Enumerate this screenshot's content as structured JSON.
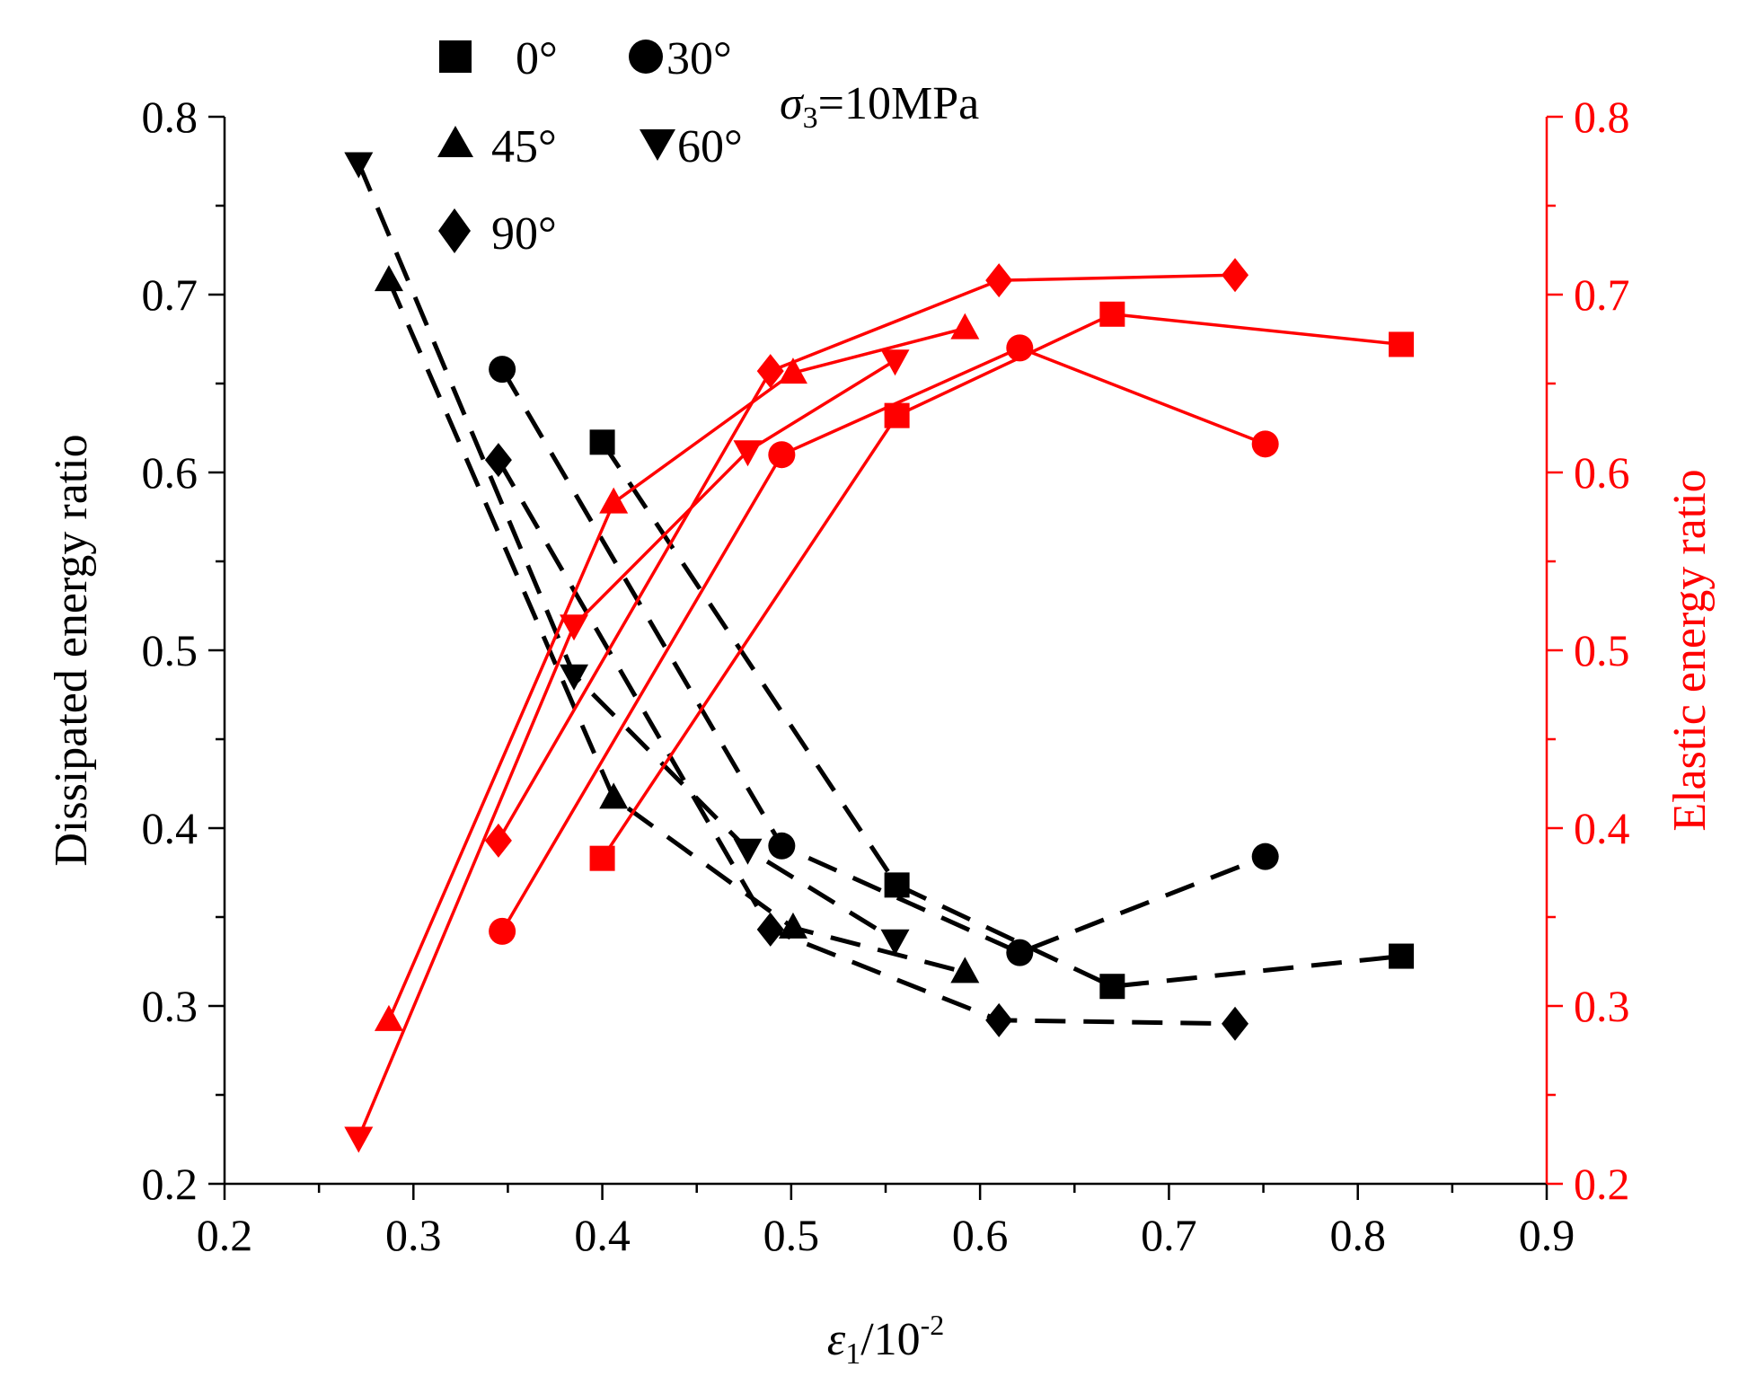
{
  "chart_data": {
    "type": "line",
    "annotation": {
      "sigma": "σ",
      "sub": "3",
      "rest": "=10MPa"
    },
    "x_axis": {
      "label_eps": "ε",
      "label_sub": "1",
      "label_rest": "/10",
      "label_sup": "-2",
      "range": [
        0.2,
        0.9
      ],
      "ticks": [
        "0.2",
        "0.3",
        "0.4",
        "0.5",
        "0.6",
        "0.7",
        "0.8",
        "0.9"
      ]
    },
    "y_axis_left": {
      "label": "Dissipated energy ratio",
      "range": [
        0.2,
        0.8
      ],
      "ticks": [
        "0.2",
        "0.3",
        "0.4",
        "0.5",
        "0.6",
        "0.7",
        "0.8"
      ]
    },
    "y_axis_right": {
      "label": "Elastic energy ratio",
      "range": [
        0.2,
        0.8
      ],
      "ticks": [
        "0.2",
        "0.3",
        "0.4",
        "0.5",
        "0.6",
        "0.7",
        "0.8"
      ],
      "color": "#ff0000"
    },
    "legend": [
      {
        "name": "0°",
        "marker": "square"
      },
      {
        "name": "30°",
        "marker": "circle"
      },
      {
        "name": "45°",
        "marker": "triangle-up"
      },
      {
        "name": "60°",
        "marker": "triangle-down"
      },
      {
        "name": "90°",
        "marker": "diamond"
      }
    ],
    "dissipated_series": [
      {
        "name": "0°",
        "marker": "square",
        "x": [
          0.4,
          0.556,
          0.67,
          0.823
        ],
        "y": [
          0.617,
          0.368,
          0.311,
          0.328
        ]
      },
      {
        "name": "30°",
        "marker": "circle",
        "x": [
          0.347,
          0.495,
          0.621,
          0.751
        ],
        "y": [
          0.658,
          0.39,
          0.33,
          0.384
        ]
      },
      {
        "name": "45°",
        "marker": "triangle-up",
        "x": [
          0.287,
          0.406,
          0.501,
          0.592
        ],
        "y": [
          0.708,
          0.417,
          0.344,
          0.319
        ]
      },
      {
        "name": "60°",
        "marker": "triangle-down",
        "x": [
          0.271,
          0.385,
          0.477,
          0.555
        ],
        "y": [
          0.774,
          0.486,
          0.388,
          0.337
        ]
      },
      {
        "name": "90°",
        "marker": "diamond",
        "x": [
          0.345,
          0.489,
          0.61,
          0.735
        ],
        "y": [
          0.607,
          0.343,
          0.292,
          0.29
        ]
      }
    ],
    "elastic_series": [
      {
        "name": "0°",
        "marker": "square",
        "x": [
          0.4,
          0.556,
          0.67,
          0.823
        ],
        "y": [
          0.383,
          0.632,
          0.689,
          0.672
        ]
      },
      {
        "name": "30°",
        "marker": "circle",
        "x": [
          0.347,
          0.495,
          0.621,
          0.751
        ],
        "y": [
          0.342,
          0.61,
          0.67,
          0.616
        ]
      },
      {
        "name": "45°",
        "marker": "triangle-up",
        "x": [
          0.287,
          0.406,
          0.501,
          0.592
        ],
        "y": [
          0.292,
          0.583,
          0.656,
          0.681
        ]
      },
      {
        "name": "60°",
        "marker": "triangle-down",
        "x": [
          0.271,
          0.385,
          0.477,
          0.555
        ],
        "y": [
          0.226,
          0.514,
          0.612,
          0.663
        ]
      },
      {
        "name": "90°",
        "marker": "diamond",
        "x": [
          0.345,
          0.489,
          0.61,
          0.735
        ],
        "y": [
          0.393,
          0.657,
          0.708,
          0.711
        ]
      }
    ],
    "colors": {
      "dissipated": "#000000",
      "elastic": "#ff0000"
    }
  }
}
